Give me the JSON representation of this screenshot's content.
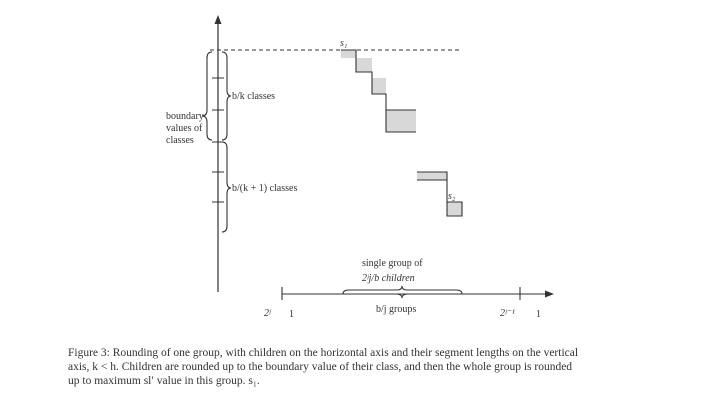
{
  "figure": {
    "labels": {
      "s1": "s₁",
      "s2": "s₂",
      "bk_classes": "b/k classes",
      "bk1_classes": "b/(k + 1) classes",
      "boundary_line1": "boundary",
      "boundary_line2": "values of",
      "boundary_line3": "classes",
      "single_group_line1": "single group of",
      "single_group_line2": "2ʲj/b children",
      "bj_groups": "b/j groups",
      "x_left": "2ʲ",
      "x_one_left": "1",
      "x_right": "2ʲ⁻¹",
      "x_one_right": "1"
    },
    "caption": {
      "line1": "Figure 3: Rounding of one group, with children on the horizontal axis and their segment lengths on the vertical",
      "line2": "axis, k < h. Children are rounded up to the boundary value of their class, and then the whole group is rounded",
      "line3": "up to maximum sl′ value in this group. s₁."
    },
    "colors": {
      "ink": "#333333",
      "shade": "#d8d8d8"
    }
  }
}
